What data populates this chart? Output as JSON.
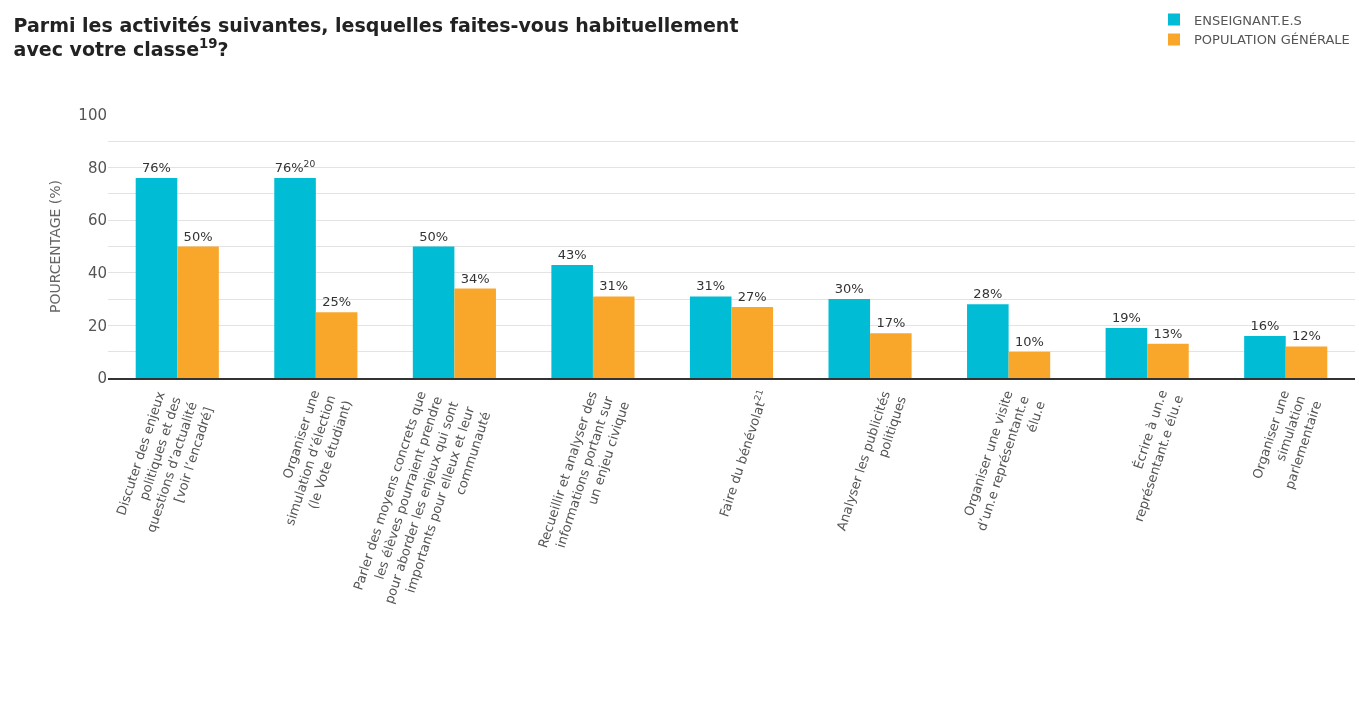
{
  "chart_data": {
    "type": "bar",
    "title": "Parmi les activités suivantes, lesquelles faites-vous habituellement\navec votre classe$^{19}$?",
    "ylabel": "POURCENTAGE (%)",
    "categories": [
      "Discuter des enjeux\npolitiques et des\nquestions d’actualité\n[voir l’encadré]",
      "Organiser une\nsimulation d’élection\n(le Vote étudiant)",
      "Parler des moyens concrets que\nles élèves pourraient prendre\npour aborder les enjeux qui sont\nimportants pour elleux et leur\ncommunauté",
      "Recueillir et analyser des\ninformations portant sur\nun enjeu civique",
      "Faire du bénévolat$^{21}$",
      "Analyser les publicités\npolitiques",
      "Organiser une visite\nd’un.e représentant.e\nélu.e",
      "Écrire à un.e\nreprésentant.e élu.e",
      "Organiser une\nsimulation\nparlementaire"
    ],
    "series": [
      {
        "name": "ENSEIGNANT.E.S",
        "color": "#00bcd4",
        "values": [
          76,
          76,
          50,
          43,
          31,
          30,
          28,
          19,
          16
        ],
        "value_labels": [
          "76%",
          "76%$^{20}$",
          "50%",
          "43%",
          "31%",
          "30%",
          "28%",
          "19%",
          "16%"
        ]
      },
      {
        "name": "POPULATION GÉNÉRALE",
        "color": "#f9a72b",
        "values": [
          50,
          25,
          34,
          31,
          27,
          17,
          10,
          13,
          12
        ],
        "value_labels": [
          "50%",
          "25%",
          "34%",
          "31%",
          "27%",
          "17%",
          "10%",
          "13%",
          "12%"
        ]
      }
    ],
    "ylim": [
      0,
      100
    ],
    "yticks": [
      0,
      {
        "value": 10,
        "label": null
      },
      20,
      {
        "value": 30,
        "label": null
      },
      40,
      {
        "value": 50,
        "label": null
      },
      60,
      {
        "value": 70,
        "label": null
      },
      80,
      {
        "value": 90,
        "label": null
      },
      100
    ],
    "grid": "y",
    "legend": "top right"
  }
}
